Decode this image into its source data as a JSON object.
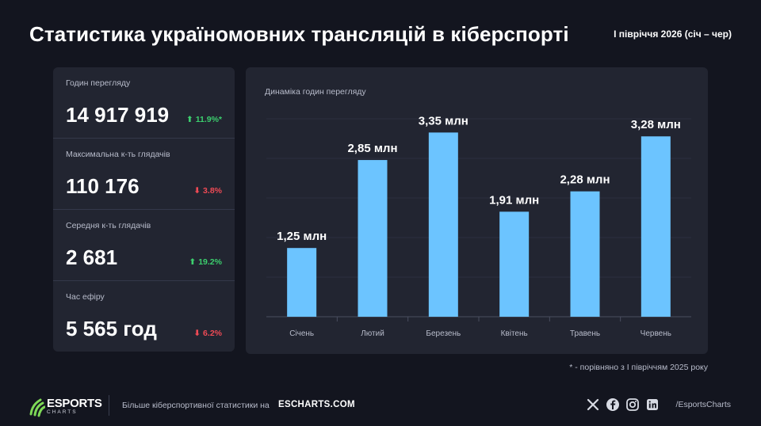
{
  "header": {
    "title": "Статистика україномовних трансляцій в кіберспорті",
    "period": "I півріччя 2026 (січ – чер)"
  },
  "stats": [
    {
      "label": "Годин перегляду",
      "value": "14 917 919",
      "change": "⬆ 11.9%*",
      "direction": "up"
    },
    {
      "label": "Максимальна к-ть глядачів",
      "value": "110 176",
      "change": "⬇ 3.8%",
      "direction": "down"
    },
    {
      "label": "Середня к-ть глядачів",
      "value": "2 681",
      "change": "⬆ 19.2%",
      "direction": "up"
    },
    {
      "label": "Час ефіру",
      "value": "5 565 год",
      "change": "⬇ 6.2%",
      "direction": "down"
    }
  ],
  "chart_data": {
    "type": "bar",
    "title": "Динаміка годин перегляду",
    "categories": [
      "Січень",
      "Лютий",
      "Березень",
      "Квітень",
      "Травень",
      "Червень"
    ],
    "values": [
      1.25,
      2.85,
      3.35,
      1.91,
      2.28,
      3.28
    ],
    "data_labels": [
      "1,25 млн",
      "2,85 млн",
      "3,35 млн",
      "1,91 млн",
      "2,28 млн",
      "3,28 млн"
    ],
    "unit": "млн",
    "ylim": [
      0,
      3.6
    ],
    "grid": true,
    "bar_color": "#6cc4ff"
  },
  "footnote": "* - порівняно з I півріччям 2025 року",
  "footer": {
    "logo_word": "ESPORTS",
    "logo_sub": "CHARTS",
    "cta": "Більше кіберспортивної статистики на",
    "site": "ESCHARTS.COM",
    "social_icons": [
      "x-icon",
      "facebook-icon",
      "instagram-icon",
      "linkedin-icon"
    ],
    "handle": "/EsportsCharts"
  },
  "colors": {
    "background": "#13151f",
    "panel": "#222531",
    "up": "#3ccf6e",
    "down": "#ef4a55",
    "logo_green": "#7ed957"
  }
}
